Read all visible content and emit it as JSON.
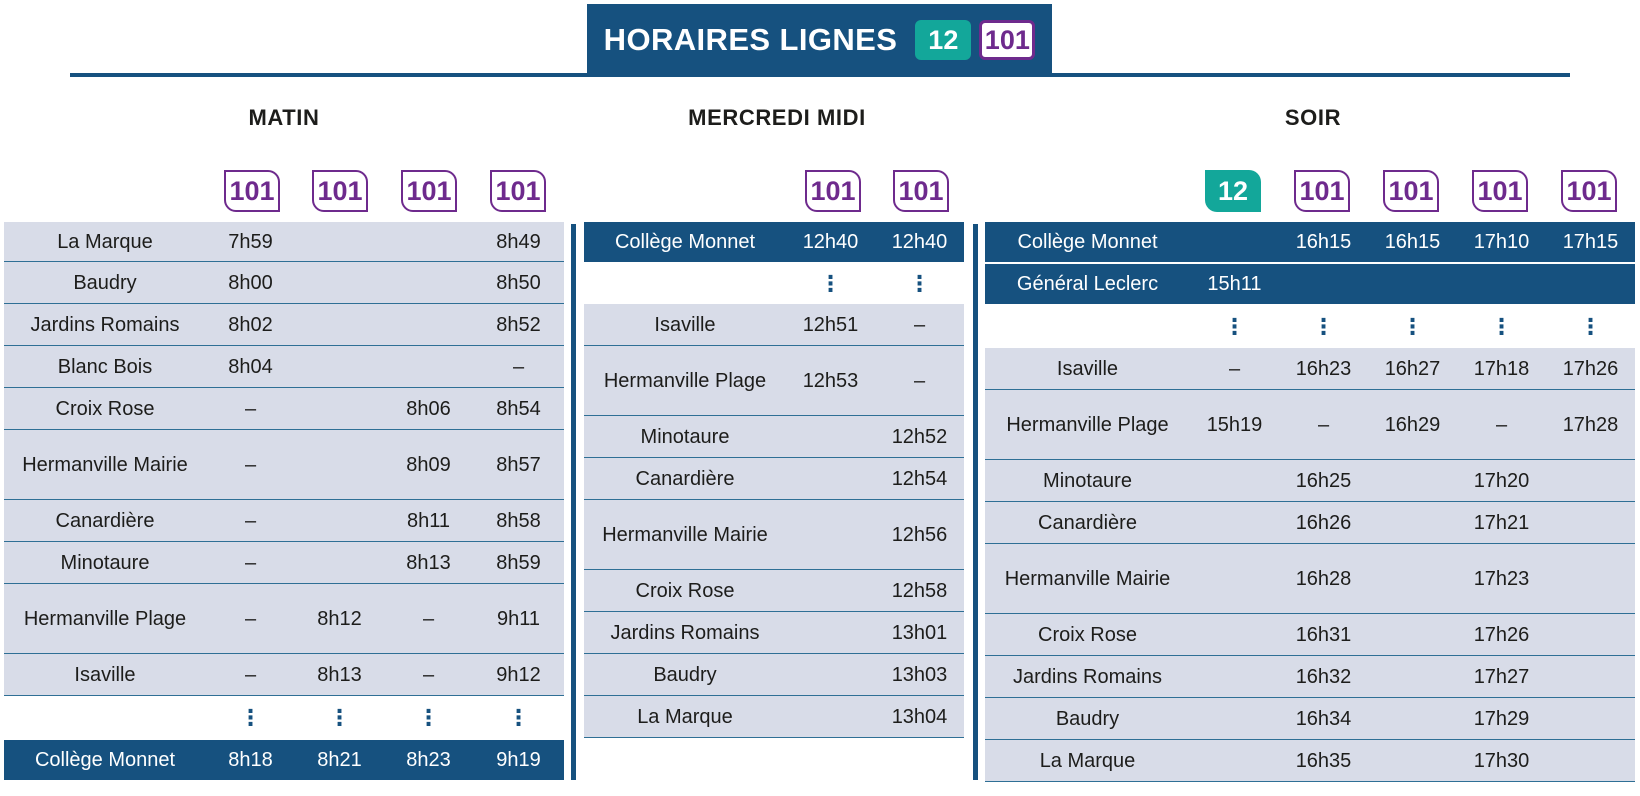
{
  "title": {
    "text": "HORAIRES LIGNES",
    "badge_12": "12",
    "badge_101": "101"
  },
  "colors": {
    "navy": "#16517f",
    "teal": "#13a79a",
    "purple": "#6e2a8d",
    "row_gray": "#d8dce8"
  },
  "sections": [
    {
      "heading": "MATIN",
      "lines": [
        "101",
        "101",
        "101",
        "101"
      ],
      "rows": [
        {
          "style": "gray",
          "stop": "La Marque",
          "times": [
            "7h59",
            "",
            "",
            "8h49"
          ]
        },
        {
          "style": "gray",
          "stop": "Baudry",
          "times": [
            "8h00",
            "",
            "",
            "8h50"
          ]
        },
        {
          "style": "gray",
          "stop": "Jardins Romains",
          "times": [
            "8h02",
            "",
            "",
            "8h52"
          ]
        },
        {
          "style": "gray",
          "stop": "Blanc Bois",
          "times": [
            "8h04",
            "",
            "",
            "–"
          ]
        },
        {
          "style": "gray",
          "stop": "Croix Rose",
          "times": [
            "–",
            "",
            "8h06",
            "8h54"
          ]
        },
        {
          "style": "gray",
          "stop": "Hermanville Mairie",
          "times": [
            "–",
            "",
            "8h09",
            "8h57"
          ]
        },
        {
          "style": "gray",
          "stop": "Canardière",
          "times": [
            "–",
            "",
            "8h11",
            "8h58"
          ]
        },
        {
          "style": "gray",
          "stop": "Minotaure",
          "times": [
            "–",
            "",
            "8h13",
            "8h59"
          ]
        },
        {
          "style": "gray",
          "stop": "Hermanville Plage",
          "times": [
            "–",
            "8h12",
            "–",
            "9h11"
          ]
        },
        {
          "style": "gray",
          "stop": "Isaville",
          "times": [
            "–",
            "8h13",
            "–",
            "9h12"
          ]
        },
        {
          "style": "dots",
          "stop": "",
          "times": [
            "⋮",
            "⋮",
            "⋮",
            "⋮"
          ]
        },
        {
          "style": "dark",
          "stop": "Collège Monnet",
          "times": [
            "8h18",
            "8h21",
            "8h23",
            "9h19"
          ]
        }
      ]
    },
    {
      "heading": "MERCREDI MIDI",
      "lines": [
        "101",
        "101"
      ],
      "rows": [
        {
          "style": "dark",
          "stop": "Collège Monnet",
          "times": [
            "12h40",
            "12h40"
          ]
        },
        {
          "style": "dots",
          "stop": "",
          "times": [
            "⋮",
            "⋮"
          ]
        },
        {
          "style": "gray",
          "stop": "Isaville",
          "times": [
            "12h51",
            "–"
          ]
        },
        {
          "style": "gray",
          "stop": "Hermanville Plage",
          "times": [
            "12h53",
            "–"
          ]
        },
        {
          "style": "gray",
          "stop": "Minotaure",
          "times": [
            "",
            "12h52"
          ]
        },
        {
          "style": "gray",
          "stop": "Canardière",
          "times": [
            "",
            "12h54"
          ]
        },
        {
          "style": "gray",
          "stop": "Hermanville Mairie",
          "times": [
            "",
            "12h56"
          ]
        },
        {
          "style": "gray",
          "stop": "Croix Rose",
          "times": [
            "",
            "12h58"
          ]
        },
        {
          "style": "gray",
          "stop": "Jardins Romains",
          "times": [
            "",
            "13h01"
          ]
        },
        {
          "style": "gray",
          "stop": "Baudry",
          "times": [
            "",
            "13h03"
          ]
        },
        {
          "style": "gray",
          "stop": "La Marque",
          "times": [
            "",
            "13h04"
          ]
        }
      ]
    },
    {
      "heading": "SOIR",
      "lines": [
        "12",
        "101",
        "101",
        "101",
        "101"
      ],
      "rows": [
        {
          "style": "dark",
          "stop": "Collège Monnet",
          "times": [
            "",
            "16h15",
            "16h15",
            "17h10",
            "17h15"
          ]
        },
        {
          "style": "dark",
          "stop": "Général Leclerc",
          "times": [
            "15h11",
            "",
            "",
            "",
            ""
          ]
        },
        {
          "style": "dots",
          "stop": "",
          "times": [
            "⋮",
            "⋮",
            "⋮",
            "⋮",
            "⋮"
          ]
        },
        {
          "style": "gray",
          "stop": "Isaville",
          "times": [
            "–",
            "16h23",
            "16h27",
            "17h18",
            "17h26"
          ]
        },
        {
          "style": "gray",
          "stop": "Hermanville Plage",
          "times": [
            "15h19",
            "–",
            "16h29",
            "–",
            "17h28"
          ]
        },
        {
          "style": "gray",
          "stop": "Minotaure",
          "times": [
            "",
            "16h25",
            "",
            "17h20",
            ""
          ]
        },
        {
          "style": "gray",
          "stop": "Canardière",
          "times": [
            "",
            "16h26",
            "",
            "17h21",
            ""
          ]
        },
        {
          "style": "gray",
          "stop": "Hermanville Mairie",
          "times": [
            "",
            "16h28",
            "",
            "17h23",
            ""
          ]
        },
        {
          "style": "gray",
          "stop": "Croix Rose",
          "times": [
            "",
            "16h31",
            "",
            "17h26",
            ""
          ]
        },
        {
          "style": "gray",
          "stop": "Jardins Romains",
          "times": [
            "",
            "16h32",
            "",
            "17h27",
            ""
          ]
        },
        {
          "style": "gray",
          "stop": "Baudry",
          "times": [
            "",
            "16h34",
            "",
            "17h29",
            ""
          ]
        },
        {
          "style": "gray",
          "stop": "La Marque",
          "times": [
            "",
            "16h35",
            "",
            "17h30",
            ""
          ]
        }
      ]
    }
  ]
}
